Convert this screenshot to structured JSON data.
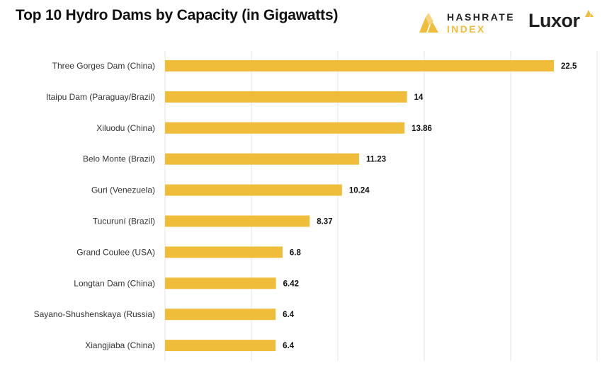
{
  "header": {
    "title": "Top 10 Hydro Dams by Capacity (in Gigawatts)"
  },
  "logos": {
    "hashrate_line1": "HASHRATE",
    "hashrate_line2": "INDEX",
    "luxor": "Luxor",
    "hashrate_icon": "hashrate-index-logo-icon",
    "luxor_icon": "luxor-logo-icon"
  },
  "colors": {
    "bar": "#f0bd3b",
    "grid": "#e6e6e6"
  },
  "chart_data": {
    "type": "bar",
    "orientation": "horizontal",
    "title": "Top 10 Hydro Dams by Capacity (in Gigawatts)",
    "categories": [
      "Three Gorges Dam (China)",
      "Itaipu Dam (Paraguay/Brazil)",
      "Xiluodu (China)",
      "Belo Monte (Brazil)",
      "Guri (Venezuela)",
      "Tucuruní (Brazil)",
      "Grand Coulee (USA)",
      "Longtan Dam (China)",
      "Sayano-Shushenskaya (Russia)",
      "Xiangjiaba (China)"
    ],
    "values": [
      22.5,
      14,
      13.86,
      11.23,
      10.24,
      8.37,
      6.8,
      6.42,
      6.4,
      6.4
    ],
    "value_labels": [
      "22.5",
      "14",
      "13.86",
      "11.23",
      "10.24",
      "8.37",
      "6.8",
      "6.42",
      "6.4",
      "6.4"
    ],
    "xlim": [
      0,
      25
    ],
    "grid": true,
    "xlabel": "",
    "ylabel": ""
  }
}
